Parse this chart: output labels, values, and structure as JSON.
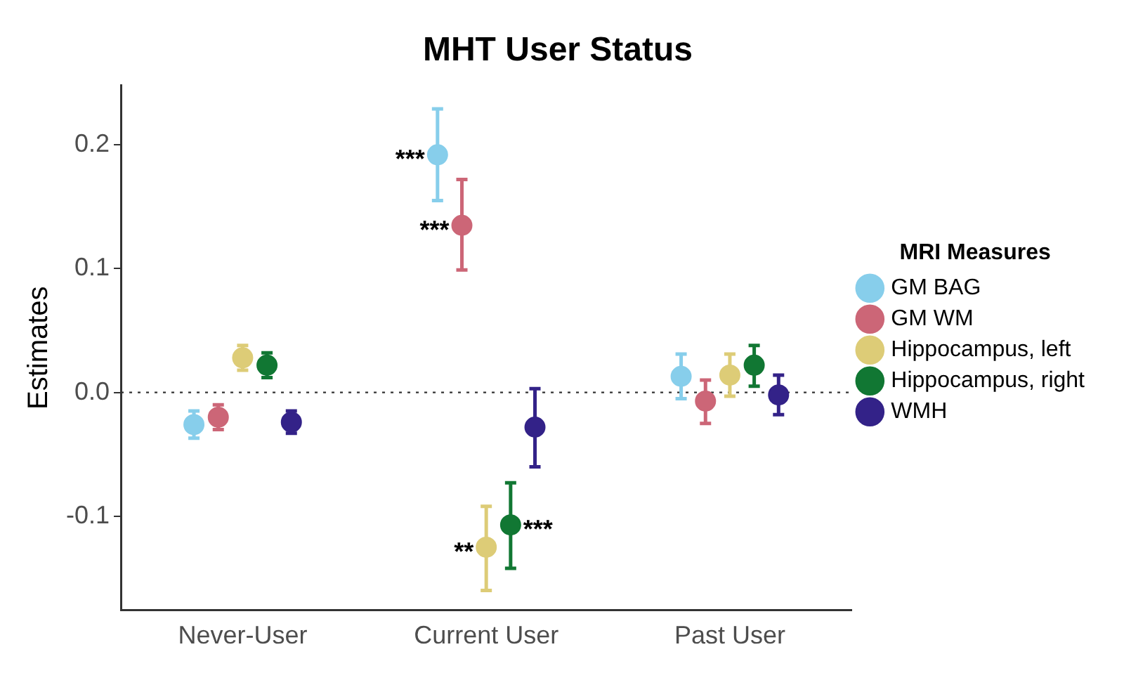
{
  "chart_data": {
    "type": "scatter",
    "title": "MHT User Status",
    "ylabel": "Estimates",
    "legend_title": "MRI Measures",
    "legend": "right",
    "marker": "circle",
    "grid": false,
    "categories": [
      "Never-User",
      "Current User",
      "Past User"
    ],
    "ylim": [
      -0.176,
      0.248
    ],
    "yticks": [
      {
        "value": -0.1,
        "label": "-0.1"
      },
      {
        "value": 0,
        "label": "0.0"
      },
      {
        "value": 0.1,
        "label": "0.1"
      },
      {
        "value": 0.2,
        "label": "0.2"
      }
    ],
    "ref_lines": [
      {
        "axis": "y",
        "value": 0,
        "line_style": "dotted",
        "color": "#333333"
      }
    ],
    "series": [
      {
        "name": "GM BAG",
        "color": "#87ceeb",
        "values": [
          -0.026,
          0.192,
          0.013
        ],
        "value_labels": [
          null,
          "***",
          null
        ],
        "errors": [
          [
            -0.037,
            -0.015
          ],
          [
            0.155,
            0.229
          ],
          [
            -0.005,
            0.031
          ]
        ]
      },
      {
        "name": "GM WM",
        "color": "#cc6677",
        "values": [
          -0.02,
          0.135,
          -0.007
        ],
        "value_labels": [
          null,
          "***",
          null
        ],
        "errors": [
          [
            -0.03,
            -0.01
          ],
          [
            0.099,
            0.172
          ],
          [
            -0.025,
            0.01
          ]
        ]
      },
      {
        "name": "Hippocampus, left",
        "color": "#ddcc77",
        "values": [
          0.028,
          -0.125,
          0.014
        ],
        "value_labels": [
          null,
          "**",
          null
        ],
        "errors": [
          [
            0.018,
            0.038
          ],
          [
            -0.16,
            -0.092
          ],
          [
            -0.003,
            0.031
          ]
        ]
      },
      {
        "name": "Hippocampus, right",
        "color": "#117733",
        "values": [
          0.022,
          -0.107,
          0.022
        ],
        "value_labels": [
          null,
          "***",
          null
        ],
        "errors": [
          [
            0.012,
            0.032
          ],
          [
            -0.142,
            -0.073
          ],
          [
            0.005,
            0.038
          ]
        ]
      },
      {
        "name": "WMH",
        "color": "#332288",
        "values": [
          -0.024,
          -0.028,
          -0.002
        ],
        "errors": [
          [
            -0.033,
            -0.015
          ],
          [
            -0.06,
            0.003
          ],
          [
            -0.018,
            0.014
          ]
        ]
      }
    ]
  }
}
